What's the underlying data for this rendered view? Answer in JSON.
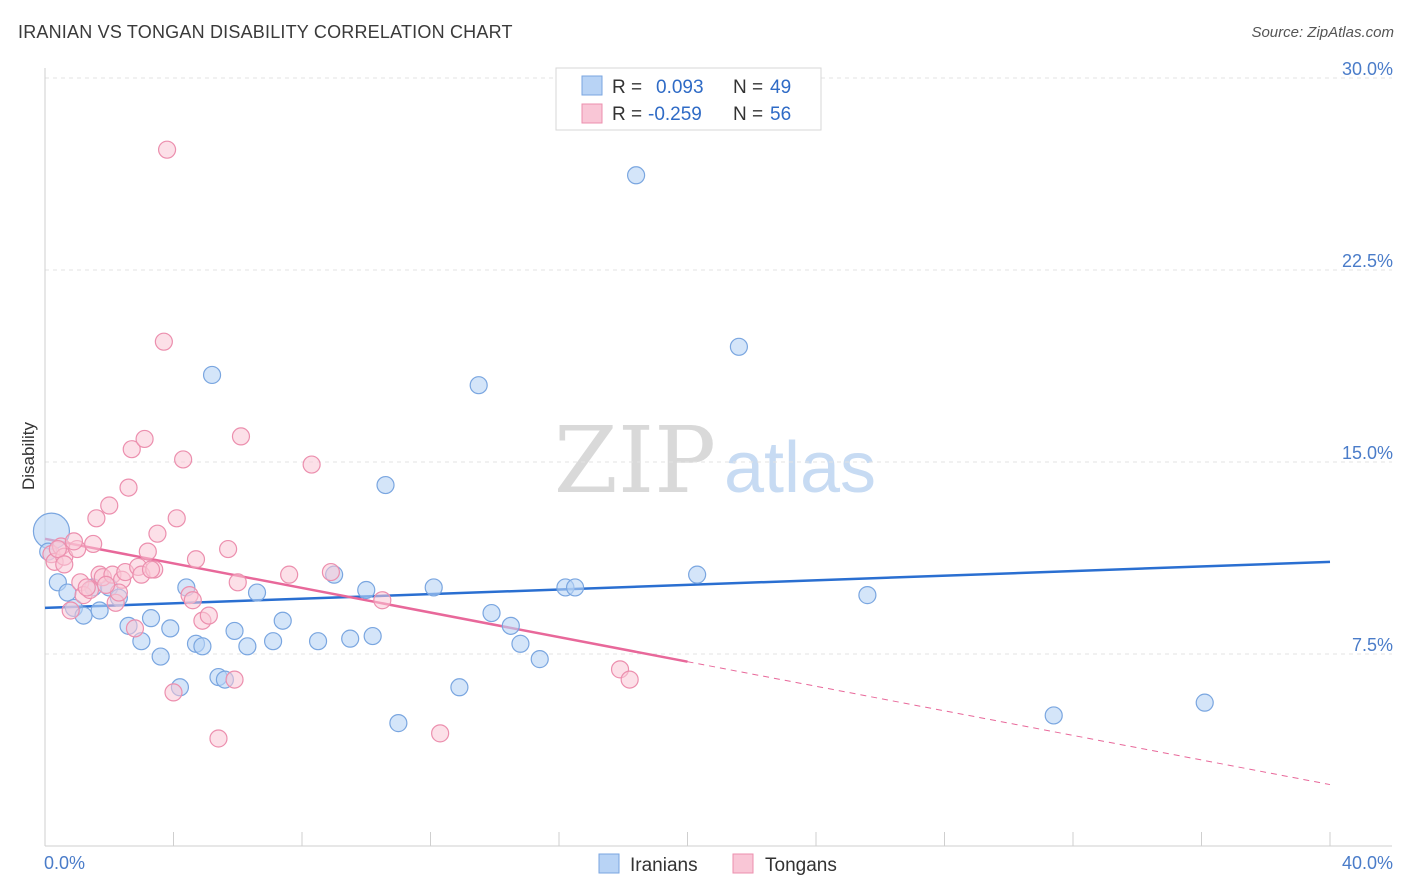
{
  "header": {
    "title": "IRANIAN VS TONGAN DISABILITY CORRELATION CHART",
    "source": "Source: ZipAtlas.com"
  },
  "watermark": {
    "zip": "ZIP",
    "atlas": "atlas"
  },
  "colors": {
    "iranians_fill": "#b8d3f5",
    "iranians_stroke": "#7aa6e0",
    "iranians_line": "#2a6fd1",
    "tongans_fill": "#f9c6d6",
    "tongans_stroke": "#ec8fae",
    "tongans_line": "#e8689a"
  },
  "chart_data": {
    "type": "scatter",
    "title": "IRANIAN VS TONGAN DISABILITY CORRELATION CHART",
    "ylabel": "Disability",
    "xlim": [
      0,
      40
    ],
    "ylim": [
      0,
      31
    ],
    "x_tick_labels": [
      "0.0%",
      "40.0%"
    ],
    "y_ticks": [
      7.5,
      15.0,
      22.5,
      30.0
    ],
    "y_tick_labels": [
      "7.5%",
      "15.0%",
      "22.5%",
      "30.0%"
    ],
    "grid": true,
    "legend_position": "top-center",
    "stats_legend": [
      {
        "r_label": "R =",
        "r_value": "0.093",
        "n_label": "N =",
        "n_value": "49"
      },
      {
        "r_label": "R =",
        "r_value": "-0.259",
        "n_label": "N =",
        "n_value": "56"
      }
    ],
    "series": [
      {
        "name": "Iranians",
        "trend": {
          "x": [
            0,
            40
          ],
          "y": [
            9.3,
            11.1
          ],
          "solid_until": 40
        },
        "points": [
          [
            0.2,
            12.3
          ],
          [
            0.4,
            10.3
          ],
          [
            0.7,
            9.9
          ],
          [
            0.9,
            9.3
          ],
          [
            1.2,
            9.0
          ],
          [
            1.5,
            10.1
          ],
          [
            1.7,
            9.2
          ],
          [
            2.0,
            10.1
          ],
          [
            2.3,
            9.7
          ],
          [
            2.6,
            8.6
          ],
          [
            3.0,
            8.0
          ],
          [
            3.3,
            8.9
          ],
          [
            3.6,
            7.4
          ],
          [
            3.9,
            8.5
          ],
          [
            4.2,
            6.2
          ],
          [
            4.4,
            10.1
          ],
          [
            4.7,
            7.9
          ],
          [
            4.9,
            7.8
          ],
          [
            5.2,
            18.4
          ],
          [
            5.4,
            6.6
          ],
          [
            5.6,
            6.5
          ],
          [
            5.9,
            8.4
          ],
          [
            6.3,
            7.8
          ],
          [
            6.6,
            9.9
          ],
          [
            7.1,
            8.0
          ],
          [
            7.4,
            8.8
          ],
          [
            8.5,
            8.0
          ],
          [
            9.0,
            10.6
          ],
          [
            9.5,
            8.1
          ],
          [
            10.0,
            10.0
          ],
          [
            10.2,
            8.2
          ],
          [
            10.6,
            14.1
          ],
          [
            11.0,
            4.8
          ],
          [
            12.1,
            10.1
          ],
          [
            12.9,
            6.2
          ],
          [
            13.5,
            18.0
          ],
          [
            13.9,
            9.1
          ],
          [
            14.5,
            8.6
          ],
          [
            14.8,
            7.9
          ],
          [
            15.4,
            7.3
          ],
          [
            16.2,
            10.1
          ],
          [
            16.5,
            10.1
          ],
          [
            18.4,
            26.2
          ],
          [
            20.3,
            10.6
          ],
          [
            21.6,
            19.5
          ],
          [
            25.6,
            9.8
          ],
          [
            31.4,
            5.1
          ],
          [
            36.1,
            5.6
          ],
          [
            0.1,
            11.5
          ]
        ]
      },
      {
        "name": "Tongans",
        "trend": {
          "x": [
            0,
            40
          ],
          "y": [
            12.0,
            2.4
          ],
          "solid_until": 20
        },
        "points": [
          [
            0.2,
            11.4
          ],
          [
            0.3,
            11.1
          ],
          [
            0.5,
            11.7
          ],
          [
            0.6,
            11.3
          ],
          [
            0.8,
            9.2
          ],
          [
            1.0,
            11.6
          ],
          [
            1.1,
            10.3
          ],
          [
            1.2,
            9.8
          ],
          [
            1.4,
            10.0
          ],
          [
            1.5,
            11.8
          ],
          [
            1.6,
            12.8
          ],
          [
            1.7,
            10.6
          ],
          [
            1.8,
            10.5
          ],
          [
            2.0,
            13.3
          ],
          [
            2.1,
            10.6
          ],
          [
            2.2,
            9.5
          ],
          [
            2.4,
            10.4
          ],
          [
            2.5,
            10.7
          ],
          [
            2.6,
            14.0
          ],
          [
            2.7,
            15.5
          ],
          [
            2.8,
            8.5
          ],
          [
            2.9,
            10.9
          ],
          [
            3.0,
            10.6
          ],
          [
            3.1,
            15.9
          ],
          [
            3.2,
            11.5
          ],
          [
            3.4,
            10.8
          ],
          [
            3.5,
            12.2
          ],
          [
            3.7,
            19.7
          ],
          [
            3.8,
            27.2
          ],
          [
            4.0,
            6.0
          ],
          [
            4.1,
            12.8
          ],
          [
            4.3,
            15.1
          ],
          [
            4.5,
            9.8
          ],
          [
            4.7,
            11.2
          ],
          [
            4.9,
            8.8
          ],
          [
            5.1,
            9.0
          ],
          [
            5.4,
            4.2
          ],
          [
            5.7,
            11.6
          ],
          [
            5.9,
            6.5
          ],
          [
            6.0,
            10.3
          ],
          [
            6.1,
            16.0
          ],
          [
            7.6,
            10.6
          ],
          [
            8.3,
            14.9
          ],
          [
            8.9,
            10.7
          ],
          [
            10.5,
            9.6
          ],
          [
            12.3,
            4.4
          ],
          [
            17.9,
            6.9
          ],
          [
            18.2,
            6.5
          ],
          [
            0.9,
            11.9
          ],
          [
            1.3,
            10.1
          ],
          [
            2.3,
            9.9
          ],
          [
            0.4,
            11.6
          ],
          [
            0.6,
            11.0
          ],
          [
            1.9,
            10.2
          ],
          [
            3.3,
            10.8
          ],
          [
            4.6,
            9.6
          ]
        ]
      }
    ]
  },
  "bottom_legend": [
    {
      "label": "Iranians"
    },
    {
      "label": "Tongans"
    }
  ]
}
